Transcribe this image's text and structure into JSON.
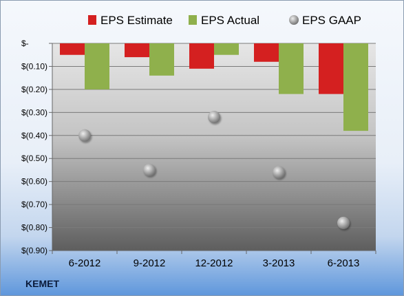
{
  "chart_data": {
    "type": "bar",
    "categories": [
      "6-2012",
      "9-2012",
      "12-2012",
      "3-2013",
      "6-2013"
    ],
    "series": [
      {
        "name": "EPS Estimate",
        "type": "bar",
        "color": "#d42020",
        "values": [
          -0.05,
          -0.06,
          -0.11,
          -0.08,
          -0.22
        ]
      },
      {
        "name": "EPS Actual",
        "type": "bar",
        "color": "#8fb04c",
        "values": [
          -0.2,
          -0.14,
          -0.05,
          -0.22,
          -0.38
        ]
      },
      {
        "name": "EPS GAAP",
        "type": "scatter",
        "color": "#a0a0a0",
        "values": [
          -0.4,
          -0.55,
          -0.32,
          -0.56,
          -0.78
        ]
      }
    ],
    "y_ticks": [
      {
        "value": 0,
        "label": "$-"
      },
      {
        "value": -0.1,
        "label": "$(0.10)"
      },
      {
        "value": -0.2,
        "label": "$(0.20)"
      },
      {
        "value": -0.3,
        "label": "$(0.30)"
      },
      {
        "value": -0.4,
        "label": "$(0.40)"
      },
      {
        "value": -0.5,
        "label": "$(0.50)"
      },
      {
        "value": -0.6,
        "label": "$(0.60)"
      },
      {
        "value": -0.7,
        "label": "$(0.70)"
      },
      {
        "value": -0.8,
        "label": "$(0.80)"
      },
      {
        "value": -0.9,
        "label": "$(0.90)"
      }
    ],
    "ylim": [
      -0.9,
      0
    ],
    "grid": true,
    "legend_position": "top"
  },
  "footer": {
    "label": "KEMET"
  }
}
